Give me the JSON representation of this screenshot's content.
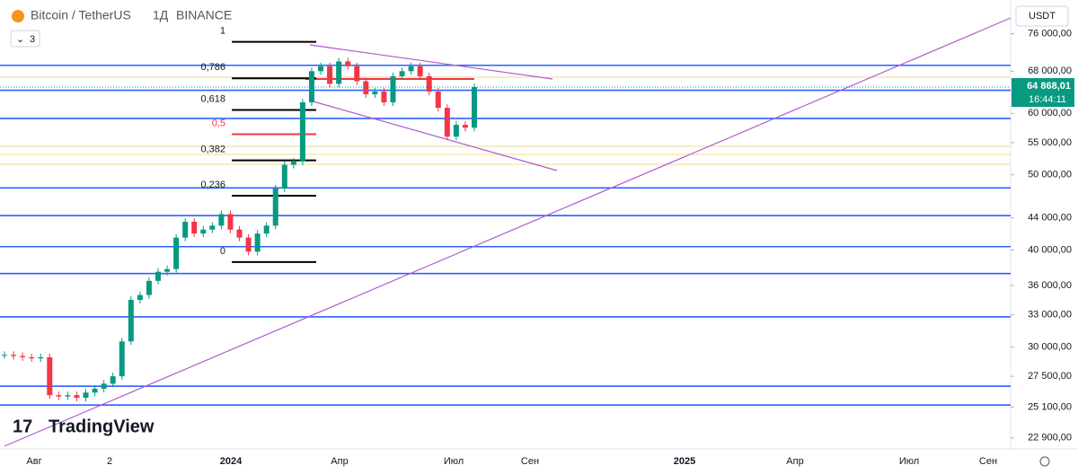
{
  "header": {
    "symbol": "Bitcoin / TetherUS",
    "interval": "1Д",
    "exchange": "BINANCE",
    "indicators_count": "3",
    "currency": "USDT"
  },
  "logo": "TradingView",
  "price_axis": {
    "log": true,
    "ylim": [
      22170,
      84000
    ],
    "ticks": [
      {
        "value": 76000,
        "label": "76 000,00"
      },
      {
        "value": 68000,
        "label": "68 000,00"
      },
      {
        "value": 60000,
        "label": "60 000,00"
      },
      {
        "value": 55000,
        "label": "55 000,00"
      },
      {
        "value": 50000,
        "label": "50 000,00"
      },
      {
        "value": 44000,
        "label": "44 000,00"
      },
      {
        "value": 40000,
        "label": "40 000,00"
      },
      {
        "value": 36000,
        "label": "36 000,00"
      },
      {
        "value": 33000,
        "label": "33 000,00"
      },
      {
        "value": 30000,
        "label": "30 000,00"
      },
      {
        "value": 27500,
        "label": "27 500,00"
      },
      {
        "value": 25100,
        "label": "25 100,00"
      },
      {
        "value": 22900,
        "label": "22 900,00"
      }
    ]
  },
  "last_price": {
    "value": 64868.01,
    "label": "64 868,01",
    "countdown": "16:44:11"
  },
  "time_axis": [
    "Авг",
    "2",
    "2024",
    "Апр",
    "Июл",
    "Сен",
    "2025",
    "Апр",
    "Июл",
    "Сен"
  ],
  "levels": [
    69200,
    64250,
    59100,
    48100,
    44300,
    40400,
    37300,
    32800,
    26700,
    25250
  ],
  "fib": {
    "low": 38600,
    "high": 74200,
    "levels": [
      {
        "value": 1,
        "label": "1"
      },
      {
        "value": 0.786,
        "label": "0,786"
      },
      {
        "value": 0.618,
        "label": "0,618"
      },
      {
        "value": 0.5,
        "label": "0,5"
      },
      {
        "value": 0.382,
        "label": "0,382"
      },
      {
        "value": 0.236,
        "label": "0,236"
      },
      {
        "value": 0,
        "label": "0"
      }
    ]
  },
  "price_series": {
    "closes": [
      29300,
      29200,
      29100,
      29000,
      29100,
      26000,
      25900,
      26000,
      25800,
      26200,
      26500,
      26900,
      27500,
      30500,
      34500,
      35000,
      36500,
      37500,
      37800,
      41500,
      43500,
      42000,
      42500,
      43000,
      44500,
      42500,
      41500,
      39800,
      42000,
      43000,
      48000,
      51500,
      52000,
      62000,
      68000,
      69000,
      65500,
      70000,
      69000,
      66000,
      63500,
      64000,
      62000,
      67000,
      68000,
      69000,
      67000,
      64000,
      61000,
      56000,
      58000,
      57500,
      64868
    ]
  }
}
